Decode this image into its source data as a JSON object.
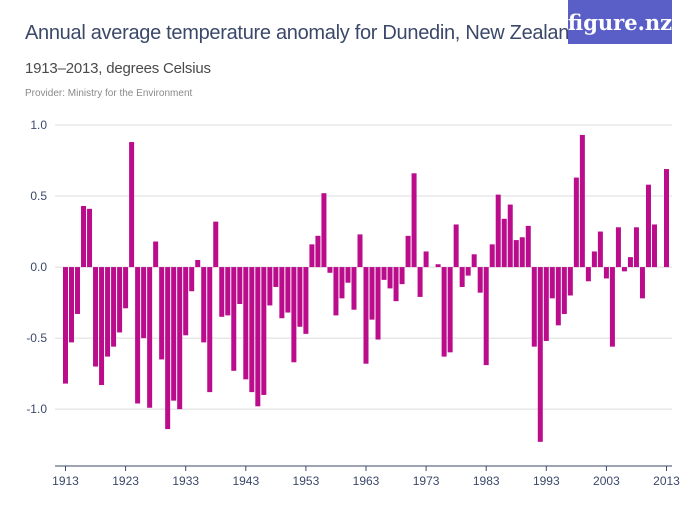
{
  "header": {
    "title": "Annual average temperature anomaly for Dunedin, New Zealand",
    "subtitle": "1913–2013, degrees Celsius",
    "provider": "Provider: Ministry for the Environment",
    "logo": "figure.nz"
  },
  "colors": {
    "bar": "#bb0c8c",
    "logo_bg": "#5a5fc8",
    "title": "#3b4869"
  },
  "chart_data": {
    "type": "bar",
    "title": "Annual average temperature anomaly for Dunedin, New Zealand",
    "subtitle": "1913–2013, degrees Celsius",
    "xlabel": "",
    "ylabel": "",
    "ylim": [
      -1.4,
      1.0
    ],
    "grid": true,
    "y_ticks": [
      1.0,
      0.5,
      0.0,
      -0.5,
      -1.0
    ],
    "y_tick_labels": [
      "1.0",
      "0.5",
      "0.0",
      "-0.5",
      "-1.0"
    ],
    "x_tick_labels": [
      "1913",
      "1923",
      "1933",
      "1943",
      "1953",
      "1963",
      "1973",
      "1983",
      "1993",
      "2003",
      "2013"
    ],
    "x_start": 1913,
    "values": [
      -0.82,
      -0.53,
      -0.33,
      0.43,
      0.41,
      -0.7,
      -0.83,
      -0.63,
      -0.56,
      -0.46,
      -0.29,
      0.88,
      -0.96,
      -0.5,
      -0.99,
      0.18,
      -0.65,
      -1.14,
      -0.94,
      -1.0,
      -0.48,
      -0.17,
      0.05,
      -0.53,
      -0.88,
      0.32,
      -0.35,
      -0.34,
      -0.73,
      -0.26,
      -0.79,
      -0.88,
      -0.98,
      -0.9,
      -0.27,
      -0.14,
      -0.36,
      -0.32,
      -0.67,
      -0.42,
      -0.47,
      0.16,
      0.22,
      0.52,
      -0.04,
      -0.34,
      -0.22,
      -0.11,
      -0.3,
      0.23,
      -0.68,
      -0.37,
      -0.51,
      -0.09,
      -0.15,
      -0.24,
      -0.12,
      0.22,
      0.66,
      -0.21,
      0.11,
      0.0,
      0.02,
      -0.63,
      -0.6,
      0.3,
      -0.14,
      -0.06,
      0.09,
      -0.18,
      -0.69,
      0.16,
      0.51,
      0.34,
      0.44,
      0.19,
      0.21,
      0.29,
      -0.56,
      -1.23,
      -0.52,
      -0.22,
      -0.41,
      -0.33,
      -0.2,
      0.63,
      0.93,
      -0.1,
      0.11,
      0.25,
      -0.08,
      -0.56,
      0.28,
      -0.03,
      0.07,
      0.28,
      -0.22,
      0.58,
      0.3,
      0.0,
      0.69
    ]
  }
}
